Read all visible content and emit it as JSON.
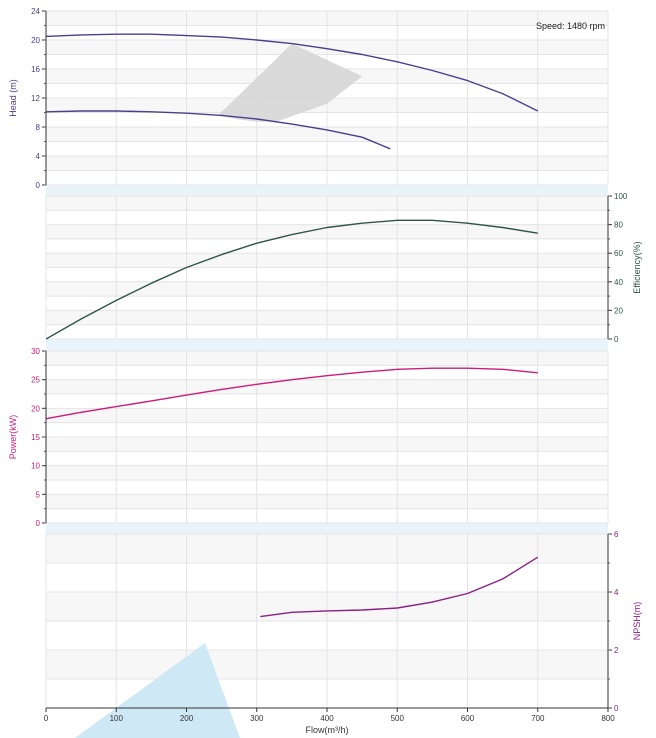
{
  "annotation": "Speed: 1480 rpm",
  "colors": {
    "head": "#4a3f8f",
    "efficiency": "#2f5546",
    "power": "#cc1b7a",
    "npsh": "#8a1f86",
    "band": "#e8f4fa",
    "shade": "#d6d6d6",
    "watermark": "#cfe8f6",
    "grid": "#e4e4e4",
    "stripe": "#f7f7f7"
  },
  "chart_data": [
    {
      "type": "line",
      "id": "head",
      "ylabel": "Head (m)",
      "ylim": [
        0,
        24
      ],
      "yticks": [
        "0",
        "4",
        "8",
        "12",
        "16",
        "20",
        "24"
      ],
      "grid": true,
      "series": [
        {
          "x": [
            0,
            50,
            100,
            150,
            200,
            250,
            300,
            350,
            400,
            450,
            500,
            550,
            600,
            650,
            700
          ],
          "y": [
            20.5,
            20.7,
            20.8,
            20.8,
            20.6,
            20.4,
            20.0,
            19.5,
            18.8,
            18.0,
            17.0,
            15.8,
            14.4,
            12.6,
            10.2
          ]
        },
        {
          "x": [
            0,
            50,
            100,
            150,
            200,
            250,
            300,
            350,
            400,
            450,
            490
          ],
          "y": [
            10.1,
            10.2,
            10.2,
            10.1,
            9.9,
            9.6,
            9.1,
            8.4,
            7.6,
            6.6,
            5.0
          ]
        }
      ],
      "operating_region": {
        "x": [
          245,
          350,
          450,
          400,
          365,
          330,
          300,
          270,
          245
        ],
        "y": [
          9.6,
          19.5,
          15.0,
          11.2,
          10.0,
          8.8,
          8.7,
          9.1,
          9.6
        ]
      }
    },
    {
      "type": "line",
      "id": "efficiency",
      "ylabel": "Efficiency(%)",
      "ylim": [
        0,
        100
      ],
      "yticks": [
        "0",
        "20",
        "40",
        "60",
        "80",
        "100"
      ],
      "grid": true,
      "series": [
        {
          "x": [
            0,
            50,
            100,
            150,
            200,
            250,
            300,
            350,
            400,
            450,
            500,
            550,
            600,
            650,
            700
          ],
          "y": [
            0,
            14,
            27,
            39,
            50,
            59,
            67,
            73,
            78,
            81,
            83,
            83,
            81,
            78,
            74
          ]
        }
      ]
    },
    {
      "type": "line",
      "id": "power",
      "ylabel": "Power(kW)",
      "ylim": [
        0,
        30
      ],
      "yticks": [
        "0",
        "5",
        "10",
        "15",
        "20",
        "25",
        "30"
      ],
      "grid": true,
      "series": [
        {
          "x": [
            0,
            50,
            100,
            150,
            200,
            250,
            300,
            350,
            400,
            450,
            500,
            550,
            600,
            650,
            700
          ],
          "y": [
            18.2,
            19.3,
            20.3,
            21.3,
            22.3,
            23.3,
            24.2,
            25.0,
            25.7,
            26.3,
            26.8,
            27.0,
            27.0,
            26.8,
            26.2
          ]
        }
      ]
    },
    {
      "type": "line",
      "id": "npsh",
      "ylabel": "NPSH(m)",
      "xlabel": "Flow(m³/h)",
      "ylim": [
        0,
        6
      ],
      "yticks": [
        "0",
        "2",
        "4",
        "6"
      ],
      "xlim": [
        0,
        800
      ],
      "xticks": [
        "0",
        "100",
        "200",
        "300",
        "400",
        "500",
        "600",
        "700",
        "800"
      ],
      "grid": true,
      "series": [
        {
          "x": [
            305,
            350,
            400,
            450,
            500,
            550,
            600,
            650,
            700
          ],
          "y": [
            3.15,
            3.3,
            3.35,
            3.38,
            3.45,
            3.65,
            3.95,
            4.45,
            5.2
          ]
        }
      ]
    }
  ]
}
